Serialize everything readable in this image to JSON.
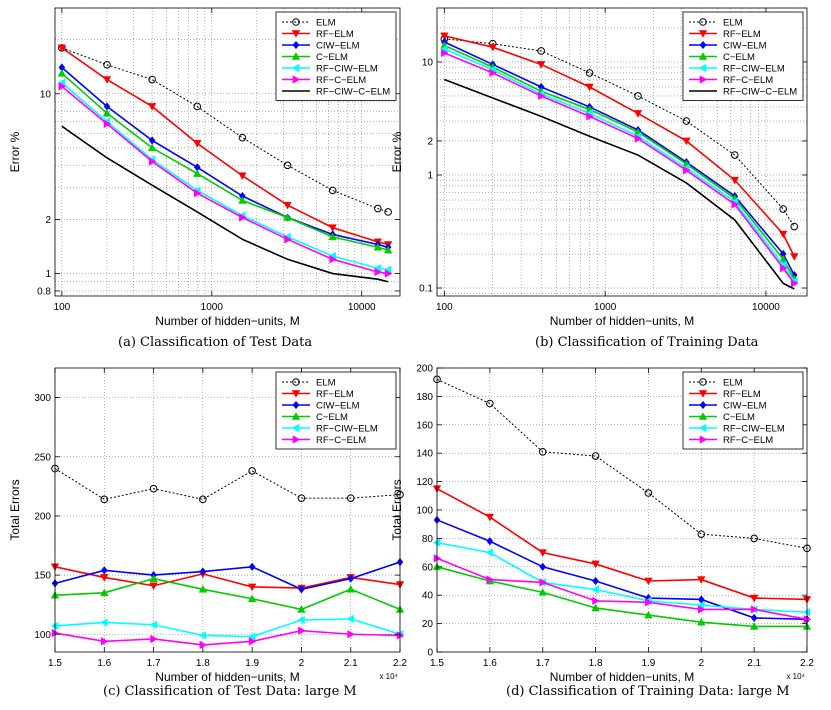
{
  "figure": {
    "captions": [
      "(a) Classification of Test Data",
      "(b) Classification of Training Data",
      "(c) Classification of Test Data: large M",
      "(d) Classification of Training Data: large M"
    ]
  },
  "series_styles": {
    "ELM": {
      "color": "#000000",
      "dash": "dotted",
      "marker": "circle"
    },
    "RF−ELM": {
      "color": "#ff0000",
      "dash": "solid",
      "marker": "triangle-down"
    },
    "CIW−ELM": {
      "color": "#0000ff",
      "dash": "solid",
      "marker": "diamond"
    },
    "C−ELM": {
      "color": "#00cc00",
      "dash": "solid",
      "marker": "triangle-up"
    },
    "RF−CIW−ELM": {
      "color": "#00ffff",
      "dash": "solid",
      "marker": "triangle-left"
    },
    "RF−C−ELM": {
      "color": "#ff00ff",
      "dash": "solid",
      "marker": "triangle-right"
    },
    "RF−CIW−C−ELM": {
      "color": "#000000",
      "dash": "solid",
      "marker": "none"
    }
  },
  "chart_data": [
    {
      "id": "a",
      "type": "line",
      "xscale": "log",
      "yscale": "log",
      "xlabel": "Number of hidden−units, M",
      "ylabel": "Error %",
      "xlim": [
        90,
        18000
      ],
      "ylim": [
        0.75,
        30
      ],
      "xticks": [
        100,
        1000,
        10000
      ],
      "xticklabels": [
        "100",
        "1000",
        "10000"
      ],
      "yticks": [
        0.8,
        1,
        2,
        10
      ],
      "yticklabels": [
        "0.8",
        "1",
        "2",
        "10"
      ],
      "legend": "top-right",
      "x": [
        100,
        200,
        400,
        800,
        1600,
        3200,
        6400,
        12800,
        15000
      ],
      "series": [
        {
          "name": "ELM",
          "values": [
            18,
            14.5,
            12,
            8.5,
            5.7,
            4,
            2.9,
            2.3,
            2.2
          ]
        },
        {
          "name": "RF−ELM",
          "values": [
            18,
            12,
            8.5,
            5.3,
            3.5,
            2.4,
            1.8,
            1.5,
            1.45
          ]
        },
        {
          "name": "CIW−ELM",
          "values": [
            14,
            8.5,
            5.5,
            3.9,
            2.7,
            2.05,
            1.65,
            1.45,
            1.4
          ]
        },
        {
          "name": "C−ELM",
          "values": [
            13,
            7.8,
            5.0,
            3.6,
            2.55,
            2.05,
            1.6,
            1.4,
            1.35
          ]
        },
        {
          "name": "RF−CIW−ELM",
          "values": [
            11.5,
            7.0,
            4.3,
            2.9,
            2.1,
            1.6,
            1.25,
            1.07,
            1.05
          ]
        },
        {
          "name": "RF−C−ELM",
          "values": [
            11,
            6.8,
            4.2,
            2.8,
            2.05,
            1.55,
            1.2,
            1.02,
            1.0
          ]
        },
        {
          "name": "RF−CIW−C−ELM",
          "values": [
            6.6,
            4.4,
            3.1,
            2.2,
            1.55,
            1.2,
            1.0,
            0.93,
            0.9
          ]
        }
      ]
    },
    {
      "id": "b",
      "type": "line",
      "xscale": "log",
      "yscale": "log",
      "xlabel": "Number of hidden−units, M",
      "ylabel": "Error %",
      "xlim": [
        90,
        18000
      ],
      "ylim": [
        0.085,
        30
      ],
      "xticks": [
        100,
        1000,
        10000
      ],
      "xticklabels": [
        "100",
        "1000",
        "10000"
      ],
      "yticks": [
        0.1,
        1,
        2,
        10
      ],
      "yticklabels": [
        "0.1",
        "1",
        "2",
        "10"
      ],
      "legend": "top-right",
      "x": [
        100,
        200,
        400,
        800,
        1600,
        3200,
        6400,
        12800,
        15000
      ],
      "series": [
        {
          "name": "ELM",
          "values": [
            16,
            14.5,
            12.5,
            8.0,
            5.0,
            3.0,
            1.5,
            0.5,
            0.35
          ]
        },
        {
          "name": "RF−ELM",
          "values": [
            17,
            13.5,
            9.5,
            6.0,
            3.5,
            2.0,
            0.9,
            0.3,
            0.19
          ]
        },
        {
          "name": "CIW−ELM",
          "values": [
            15,
            9.5,
            6.0,
            4.0,
            2.5,
            1.3,
            0.65,
            0.2,
            0.13
          ]
        },
        {
          "name": "C−ELM",
          "values": [
            14,
            9.0,
            5.5,
            3.8,
            2.4,
            1.25,
            0.62,
            0.18,
            0.12
          ]
        },
        {
          "name": "RF−CIW−ELM",
          "values": [
            13,
            8.5,
            5.2,
            3.5,
            2.2,
            1.15,
            0.58,
            0.16,
            0.115
          ]
        },
        {
          "name": "RF−C−ELM",
          "values": [
            12,
            8.0,
            5.0,
            3.3,
            2.1,
            1.1,
            0.55,
            0.15,
            0.11
          ]
        },
        {
          "name": "RF−CIW−C−ELM",
          "values": [
            7.0,
            4.8,
            3.3,
            2.2,
            1.5,
            0.85,
            0.4,
            0.11,
            0.098
          ]
        }
      ]
    },
    {
      "id": "c",
      "type": "line",
      "xscale": "linear",
      "yscale": "linear",
      "xlabel": "Number of hidden−units, M",
      "ylabel": "Total Errors",
      "xlim": [
        1.5,
        2.2
      ],
      "ylim": [
        85,
        325
      ],
      "xticks": [
        1.5,
        1.6,
        1.7,
        1.8,
        1.9,
        2.0,
        2.1,
        2.2
      ],
      "xticklabels": [
        "1.5",
        "1.6",
        "1.7",
        "1.8",
        "1.9",
        "2",
        "2.1",
        "2.2"
      ],
      "yticks": [
        100,
        150,
        200,
        250,
        300
      ],
      "yticklabels": [
        "100",
        "150",
        "200",
        "250",
        "300"
      ],
      "xmultiplier": "x 10⁴",
      "legend": "top-right",
      "x": [
        1.5,
        1.6,
        1.7,
        1.8,
        1.9,
        2.0,
        2.1,
        2.2
      ],
      "series": [
        {
          "name": "ELM",
          "values": [
            240,
            214,
            223,
            214,
            238,
            215,
            215,
            218
          ]
        },
        {
          "name": "RF−ELM",
          "values": [
            157,
            148,
            141,
            151,
            140,
            139,
            148,
            142
          ]
        },
        {
          "name": "CIW−ELM",
          "values": [
            143,
            154,
            150,
            153,
            157,
            138,
            147,
            161
          ]
        },
        {
          "name": "C−ELM",
          "values": [
            133,
            135,
            147,
            138,
            130,
            121,
            138,
            121
          ]
        },
        {
          "name": "RF−CIW−ELM",
          "values": [
            107,
            110,
            108,
            99,
            98,
            112,
            113,
            100
          ]
        },
        {
          "name": "RF−C−ELM",
          "values": [
            101,
            94,
            96,
            91,
            94,
            103,
            100,
            99
          ]
        }
      ]
    },
    {
      "id": "d",
      "type": "line",
      "xscale": "linear",
      "yscale": "linear",
      "xlabel": "Number of hidden−units, M",
      "ylabel": "Total Errors",
      "xlim": [
        1.5,
        2.2
      ],
      "ylim": [
        0,
        200
      ],
      "xticks": [
        1.5,
        1.6,
        1.7,
        1.8,
        1.9,
        2.0,
        2.1,
        2.2
      ],
      "xticklabels": [
        "1.5",
        "1.6",
        "1.7",
        "1.8",
        "1.9",
        "2",
        "2.1",
        "2.2"
      ],
      "yticks": [
        0,
        20,
        40,
        60,
        80,
        100,
        120,
        140,
        160,
        180,
        200
      ],
      "yticklabels": [
        "0",
        "20",
        "40",
        "60",
        "80",
        "100",
        "120",
        "140",
        "160",
        "180",
        "200"
      ],
      "xmultiplier": "x 10⁴",
      "legend": "top-right",
      "x": [
        1.5,
        1.6,
        1.7,
        1.8,
        1.9,
        2.0,
        2.1,
        2.2
      ],
      "series": [
        {
          "name": "ELM",
          "values": [
            192,
            175,
            141,
            138,
            112,
            83,
            80,
            73
          ]
        },
        {
          "name": "RF−ELM",
          "values": [
            115,
            95,
            70,
            62,
            50,
            51,
            38,
            37
          ]
        },
        {
          "name": "CIW−ELM",
          "values": [
            93,
            78,
            60,
            50,
            38,
            37,
            24,
            23
          ]
        },
        {
          "name": "C−ELM",
          "values": [
            60,
            50,
            42,
            31,
            26,
            21,
            18,
            18
          ]
        },
        {
          "name": "RF−CIW−ELM",
          "values": [
            77,
            70,
            49,
            44,
            36,
            33,
            30,
            28
          ]
        },
        {
          "name": "RF−C−ELM",
          "values": [
            66,
            51,
            49,
            36,
            35,
            30,
            30,
            23
          ]
        }
      ]
    }
  ]
}
